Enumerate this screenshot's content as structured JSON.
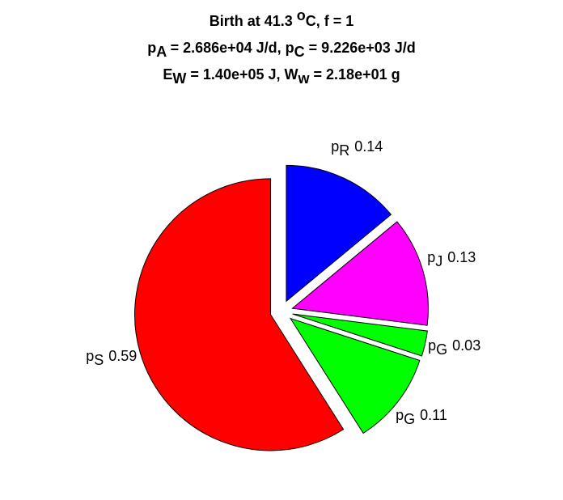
{
  "chart_data": {
    "type": "pie",
    "title": [
      [
        {
          "text": "Birth at 41.3 "
        },
        {
          "text": "o",
          "shift": "super"
        },
        {
          "text": "C, f = 1"
        }
      ],
      [
        {
          "text": "p"
        },
        {
          "text": "A",
          "shift": "sub"
        },
        {
          "text": " = 2.686e+04 J/d, p"
        },
        {
          "text": "C",
          "shift": "sub"
        },
        {
          "text": " = 9.226e+03 J/d"
        }
      ],
      [
        {
          "text": "E"
        },
        {
          "text": "W",
          "shift": "sub"
        },
        {
          "text": " = 1.40e+05 J, W"
        },
        {
          "text": "w",
          "shift": "sub"
        },
        {
          "text": " = 2.18e+01 g"
        }
      ]
    ],
    "categories": [
      [
        {
          "text": "p"
        },
        {
          "text": "R",
          "shift": "sub"
        }
      ],
      [
        {
          "text": "p"
        },
        {
          "text": "J",
          "shift": "sub"
        }
      ],
      [
        {
          "text": "p"
        },
        {
          "text": "G",
          "shift": "sub"
        }
      ],
      [
        {
          "text": "p"
        },
        {
          "text": "G",
          "shift": "sub"
        }
      ],
      [
        {
          "text": "p"
        },
        {
          "text": "S",
          "shift": "sub"
        }
      ]
    ],
    "values": [
      0.14,
      0.13,
      0.03,
      0.11,
      0.59
    ],
    "colors": [
      "#0000ff",
      "#ff00ff",
      "#00ff00",
      "#00ff00",
      "#ff0000"
    ],
    "start_angle": 90,
    "direction": "clockwise"
  }
}
